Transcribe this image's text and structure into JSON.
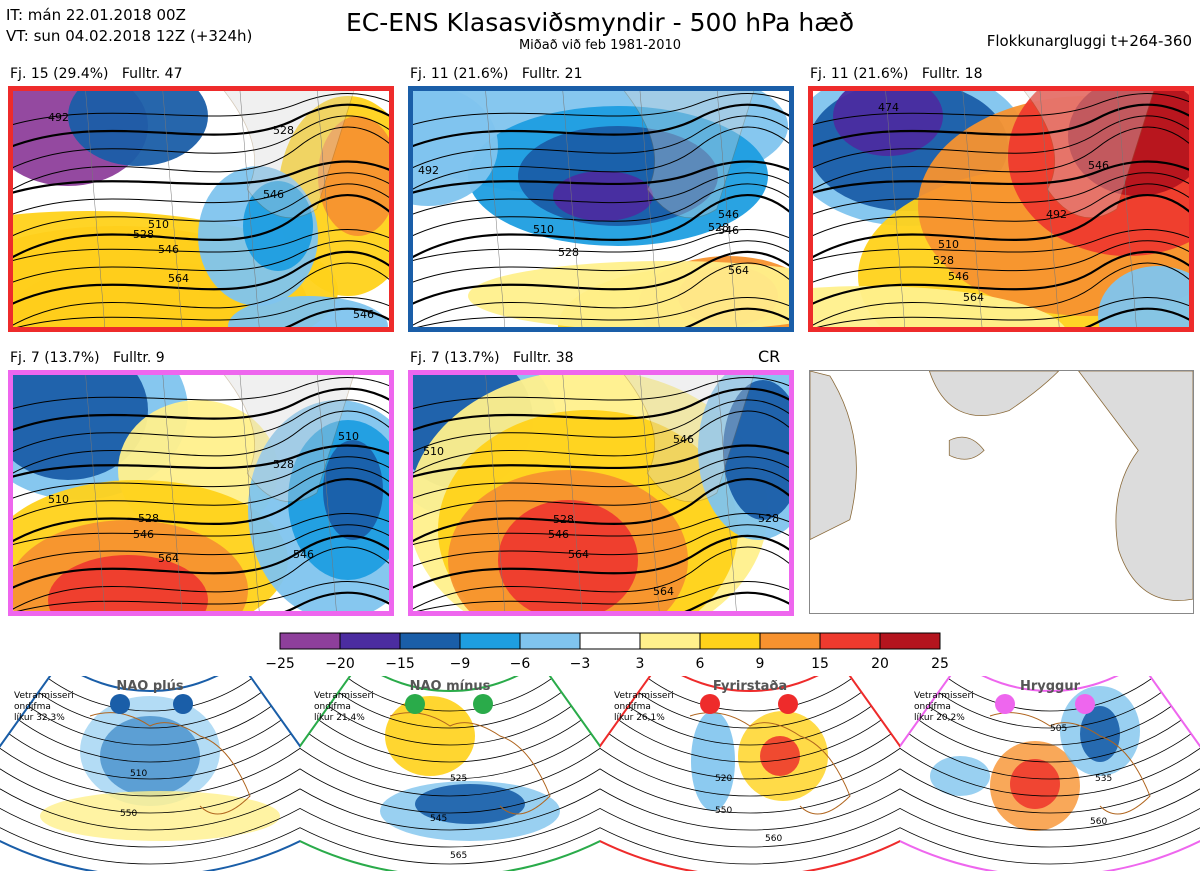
{
  "header": {
    "it_line": "IT: mán 22.01.2018 00Z",
    "vt_line": "VT: sun 04.02.2018 12Z  (+324h)",
    "title": "EC-ENS Klasasviðsmyndir - 500 hPa hæð",
    "subtitle": "Miðað við feb 1981-2010",
    "window": "Flokkunargluggi t+264-360"
  },
  "panels": [
    {
      "label": "Fj. 15 (29.4%)   Fulltr. 47",
      "frame_color": "#ee2b2b",
      "contours": [
        "492",
        "528",
        "546",
        "510",
        "528",
        "546",
        "564",
        "546"
      ]
    },
    {
      "label": "Fj. 11 (21.6%)   Fulltr. 21",
      "frame_color": "#1a5ea8",
      "contours": [
        "492",
        "510",
        "528",
        "546",
        "528",
        "546",
        "564"
      ]
    },
    {
      "label": "Fj. 11 (21.6%)   Fulltr. 18",
      "frame_color": "#ee2b2b",
      "contours": [
        "474",
        "492",
        "510",
        "528",
        "546",
        "546",
        "564"
      ]
    },
    {
      "label": "Fj. 7 (13.7%)   Fulltr. 9",
      "frame_color": "#ee66ee",
      "contours": [
        "510",
        "528",
        "546",
        "564",
        "528",
        "510",
        "546"
      ]
    },
    {
      "label": "Fj. 7 (13.7%)   Fulltr. 38",
      "frame_color": "#ee66ee",
      "contours": [
        "510",
        "528",
        "546",
        "564",
        "564",
        "546",
        "528"
      ]
    }
  ],
  "cr_label": "CR",
  "colorbar": {
    "ticks": [
      "−25",
      "−20",
      "−15",
      "−9",
      "−6",
      "−3",
      "3",
      "6",
      "9",
      "15",
      "20",
      "25"
    ],
    "colors": [
      "#8e3f9b",
      "#4b2ca0",
      "#1a5ea8",
      "#1e9ee0",
      "#80c4ee",
      "#ffffff",
      "#fff08c",
      "#ffd21a",
      "#f7922f",
      "#ee3a2e",
      "#b4141e"
    ]
  },
  "regimes": [
    {
      "name": "NAO plús",
      "stats": [
        "Vetrarmisseri",
        "ondjfma",
        "líkur 32,3%"
      ],
      "color": "#1a5ea8",
      "contours": [
        "510",
        "550"
      ]
    },
    {
      "name": "NAO mínus",
      "stats": [
        "Vetrarmisseri",
        "ondjfma",
        "líkur 21,4%"
      ],
      "color": "#2aab4a",
      "contours": [
        "525",
        "545",
        "565"
      ]
    },
    {
      "name": "Fyrirstaða",
      "stats": [
        "Vetrarmisseri",
        "ondjfma",
        "líkur 26,1%"
      ],
      "color": "#ee2b2b",
      "contours": [
        "520",
        "550",
        "560"
      ]
    },
    {
      "name": "Hryggur",
      "stats": [
        "Vetrarmisseri",
        "ondjfma",
        "líkur 20,2%"
      ],
      "color": "#ee66ee",
      "contours": [
        "505",
        "535",
        "560"
      ]
    }
  ]
}
